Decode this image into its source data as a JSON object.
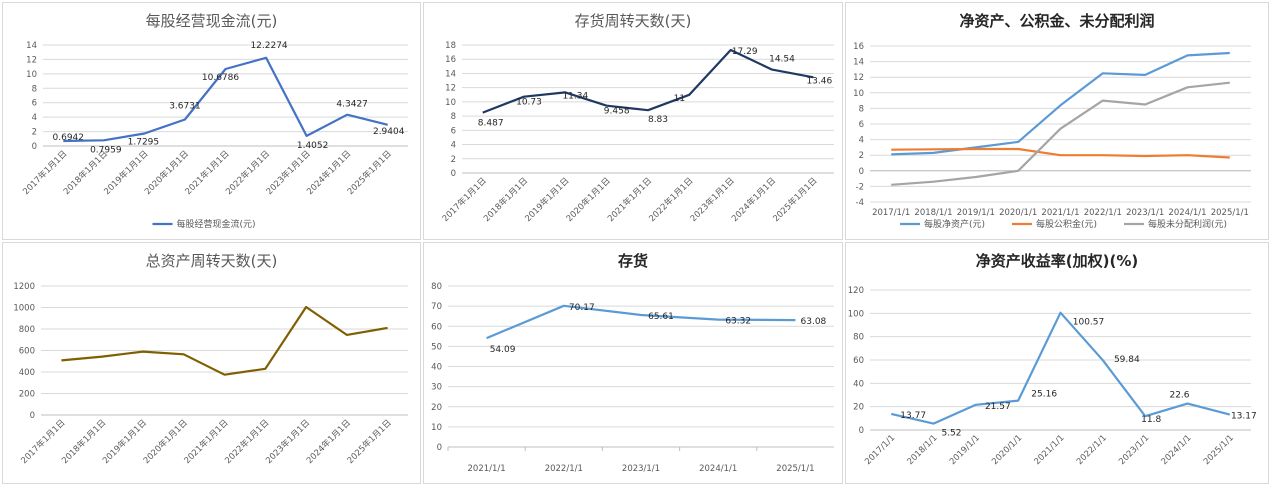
{
  "chart_data": [
    {
      "id": "p1",
      "type": "line",
      "title": "每股经营现金流(元)",
      "categories": [
        "2017年1月1日",
        "2018年1月1日",
        "2019年1月1日",
        "2020年1月1日",
        "2021年1月1日",
        "2022年1月1日",
        "2023年1月1日",
        "2024年1月1日",
        "2025年1月1日"
      ],
      "series": [
        {
          "name": "每股经营现金流(元)",
          "color": "#4472c4",
          "values": [
            0.6942,
            0.7959,
            1.7295,
            3.6731,
            10.6786,
            12.2274,
            1.4052,
            4.3427,
            2.9404
          ],
          "labels": [
            "0.6942",
            "0.7959",
            "1.7295",
            "3.6731",
            "10.6786",
            "12.2274",
            "1.4052",
            "4.3427",
            "2.9404"
          ]
        }
      ],
      "ylim": [
        0,
        14
      ],
      "ystep": 2,
      "grid": true,
      "legend": "bottom",
      "xlabel": "",
      "ylabel": ""
    },
    {
      "id": "p2",
      "type": "line",
      "title": "存货周转天数(天)",
      "categories": [
        "2017年1月1日",
        "2018年1月1日",
        "2019年1月1日",
        "2020年1月1日",
        "2021年1月1日",
        "2022年1月1日",
        "2023年1月1日",
        "2024年1月1日",
        "2025年1月1日"
      ],
      "series": [
        {
          "color": "#203864",
          "values": [
            8.487,
            10.73,
            11.34,
            9.458,
            8.83,
            11,
            17.29,
            14.54,
            13.46
          ],
          "labels": [
            "8.487",
            "10.73",
            "11.34",
            "9.458",
            "8.83",
            "11",
            "17.29",
            "14.54",
            "13.46"
          ]
        }
      ],
      "ylim": [
        0,
        18
      ],
      "ystep": 2,
      "grid": true,
      "legend": "none",
      "xlabel": "",
      "ylabel": ""
    },
    {
      "id": "p3",
      "type": "line",
      "title": "净资产、公积金、未分配利润",
      "categories": [
        "2017/1/1",
        "2018/1/1",
        "2019/1/1",
        "2020/1/1",
        "2021/1/1",
        "2022/1/1",
        "2023/1/1",
        "2024/1/1",
        "2025/1/1"
      ],
      "series": [
        {
          "name": "每股净资产(元)",
          "color": "#5b9bd5",
          "values": [
            2.1,
            2.3,
            3.0,
            3.7,
            8.4,
            12.5,
            12.3,
            14.8,
            15.1
          ]
        },
        {
          "name": "每股公积金(元)",
          "color": "#ed7d31",
          "values": [
            2.7,
            2.75,
            2.8,
            2.8,
            2.0,
            2.0,
            1.9,
            2.0,
            1.7
          ]
        },
        {
          "name": "每股未分配利润(元)",
          "color": "#a5a5a5",
          "values": [
            -1.8,
            -1.4,
            -0.8,
            0.0,
            5.4,
            9.0,
            8.5,
            10.7,
            11.3
          ]
        }
      ],
      "ylim": [
        -4,
        16
      ],
      "ystep": 2,
      "grid": true,
      "legend": "bottom",
      "xlabel": "",
      "ylabel": ""
    },
    {
      "id": "p4",
      "type": "line",
      "title": "总资产周转天数(天)",
      "categories": [
        "2017年1月1日",
        "2018年1月1日",
        "2019年1月1日",
        "2020年1月1日",
        "2021年1月1日",
        "2022年1月1日",
        "2023年1月1日",
        "2024年1月1日",
        "2025年1月1日"
      ],
      "series": [
        {
          "color": "#7f6000",
          "values": [
            508,
            543,
            590,
            565,
            375,
            430,
            1005,
            745,
            810
          ]
        }
      ],
      "ylim": [
        0,
        1200
      ],
      "ystep": 200,
      "grid": true,
      "legend": "none",
      "xlabel": "",
      "ylabel": ""
    },
    {
      "id": "p5",
      "type": "line",
      "title": "存货",
      "categories": [
        "2021/1/1",
        "2022/1/1",
        "2023/1/1",
        "2024/1/1",
        "2025/1/1"
      ],
      "series": [
        {
          "color": "#5b9bd5",
          "values": [
            54.09,
            70.17,
            65.61,
            63.32,
            63.08
          ],
          "labels": [
            "54.09",
            "70.17",
            "65.61",
            "63.32",
            "63.08"
          ]
        }
      ],
      "ylim": [
        0,
        80
      ],
      "ystep": 10,
      "grid": true,
      "legend": "none",
      "xlabel": "",
      "ylabel": ""
    },
    {
      "id": "p6",
      "type": "line",
      "title": "净资产收益率(加权)(%)",
      "categories": [
        "2017/1/1",
        "2018/1/1",
        "2019/1/1",
        "2020/1/1",
        "2021/1/1",
        "2022/1/1",
        "2023/1/1",
        "2024/1/1",
        "2025/1/1"
      ],
      "series": [
        {
          "color": "#5b9bd5",
          "values": [
            13.77,
            5.52,
            21.57,
            25.16,
            100.57,
            59.84,
            11.8,
            22.6,
            13.17
          ],
          "labels": [
            "13.77",
            "5.52",
            "21.57",
            "25.16",
            "100.57",
            "59.84",
            "11.8",
            "22.6",
            "13.17"
          ]
        }
      ],
      "ylim": [
        0,
        120
      ],
      "ystep": 20,
      "grid": true,
      "legend": "none",
      "xlabel": "",
      "ylabel": ""
    }
  ]
}
